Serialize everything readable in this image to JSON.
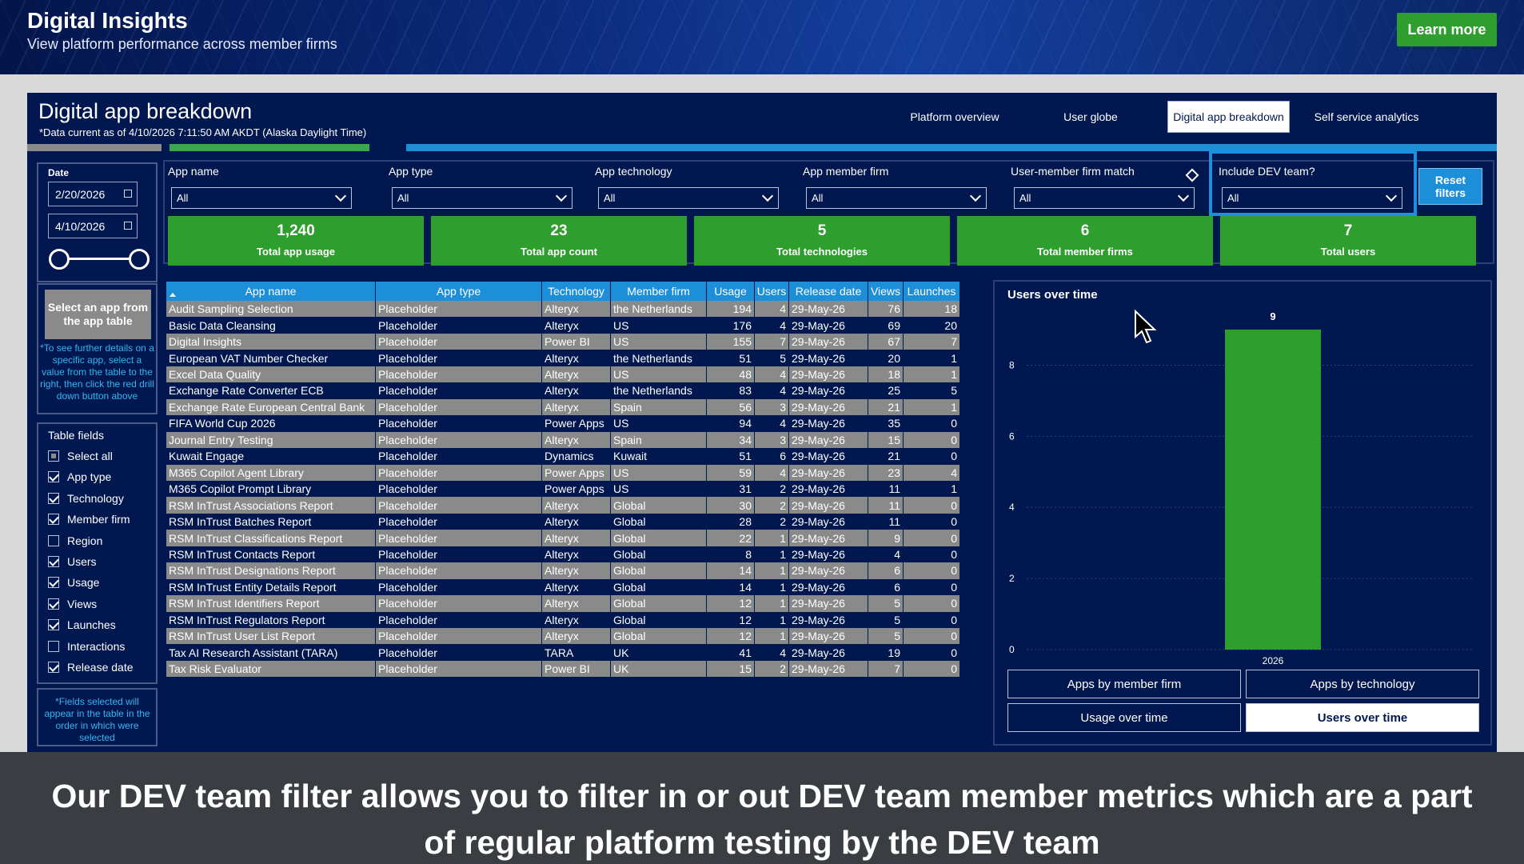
{
  "banner": {
    "title": "Digital Insights",
    "subtitle": "View platform performance across member firms",
    "learn_more": "Learn more"
  },
  "report": {
    "title": "Digital app breakdown",
    "data_note": "*Data current as of 4/10/2026 7:11:50 AM AKDT (Alaska Daylight Time)",
    "tabs": [
      {
        "label": "Platform overview",
        "active": false
      },
      {
        "label": "User globe",
        "active": false
      },
      {
        "label": "Digital app breakdown",
        "active": true
      },
      {
        "label": "Self service analytics",
        "active": false
      }
    ]
  },
  "date_filter": {
    "label": "Date",
    "start": "2/20/2026",
    "end": "4/10/2026"
  },
  "select_app": {
    "button": "Select an app from the app table",
    "note": "*To see further details on a specific app, select a value from the table to the right, then click the red drill down button above"
  },
  "table_fields": {
    "title": "Table fields",
    "items": [
      {
        "label": "Select all",
        "state": "partial"
      },
      {
        "label": "App type",
        "state": "checked"
      },
      {
        "label": "Technology",
        "state": "checked"
      },
      {
        "label": "Member firm",
        "state": "checked"
      },
      {
        "label": "Region",
        "state": "unchecked"
      },
      {
        "label": "Users",
        "state": "checked"
      },
      {
        "label": "Usage",
        "state": "checked"
      },
      {
        "label": "Views",
        "state": "checked"
      },
      {
        "label": "Launches",
        "state": "checked"
      },
      {
        "label": "Interactions",
        "state": "unchecked"
      },
      {
        "label": "Release date",
        "state": "checked"
      }
    ],
    "note": "*Fields selected will appear in the table in the order in which were selected"
  },
  "filters": [
    {
      "label": "App name",
      "value": "All"
    },
    {
      "label": "App type",
      "value": "All"
    },
    {
      "label": "App technology",
      "value": "All"
    },
    {
      "label": "App member firm",
      "value": "All"
    },
    {
      "label": "User-member firm match",
      "value": "All"
    },
    {
      "label": "Include DEV team?",
      "value": "All"
    }
  ],
  "reset_filters": "Reset filters",
  "kpis": [
    {
      "value": "1,240",
      "label": "Total app usage"
    },
    {
      "value": "23",
      "label": "Total app count"
    },
    {
      "value": "5",
      "label": "Total technologies"
    },
    {
      "value": "6",
      "label": "Total member firms"
    },
    {
      "value": "7",
      "label": "Total users"
    }
  ],
  "table": {
    "columns": [
      "App name",
      "App type",
      "Technology",
      "Member firm",
      "Usage",
      "Users",
      "Release date",
      "Views",
      "Launches"
    ],
    "rows": [
      [
        "Audit Sampling Selection",
        "Placeholder",
        "Alteryx",
        "the Netherlands",
        "194",
        "4",
        "29-May-26",
        "76",
        "18"
      ],
      [
        "Basic Data Cleansing",
        "Placeholder",
        "Alteryx",
        "US",
        "176",
        "4",
        "29-May-26",
        "69",
        "20"
      ],
      [
        "Digital Insights",
        "Placeholder",
        "Power BI",
        "US",
        "155",
        "7",
        "29-May-26",
        "67",
        "7"
      ],
      [
        "European VAT Number Checker",
        "Placeholder",
        "Alteryx",
        "the Netherlands",
        "51",
        "5",
        "29-May-26",
        "20",
        "1"
      ],
      [
        "Excel Data Quality",
        "Placeholder",
        "Alteryx",
        "US",
        "48",
        "4",
        "29-May-26",
        "18",
        "1"
      ],
      [
        "Exchange Rate Converter ECB",
        "Placeholder",
        "Alteryx",
        "the Netherlands",
        "83",
        "4",
        "29-May-26",
        "25",
        "5"
      ],
      [
        "Exchange Rate European Central Bank",
        "Placeholder",
        "Alteryx",
        "Spain",
        "56",
        "3",
        "29-May-26",
        "21",
        "1"
      ],
      [
        "FIFA World Cup 2026",
        "Placeholder",
        "Power Apps",
        "US",
        "94",
        "4",
        "29-May-26",
        "35",
        "0"
      ],
      [
        "Journal Entry Testing",
        "Placeholder",
        "Alteryx",
        "Spain",
        "34",
        "3",
        "29-May-26",
        "15",
        "0"
      ],
      [
        "Kuwait Engage",
        "Placeholder",
        "Dynamics",
        "Kuwait",
        "51",
        "6",
        "29-May-26",
        "21",
        "0"
      ],
      [
        "M365 Copilot Agent Library",
        "Placeholder",
        "Power Apps",
        "US",
        "59",
        "4",
        "29-May-26",
        "23",
        "4"
      ],
      [
        "M365 Copilot Prompt Library",
        "Placeholder",
        "Power Apps",
        "US",
        "31",
        "2",
        "29-May-26",
        "11",
        "1"
      ],
      [
        "RSM InTrust Associations Report",
        "Placeholder",
        "Alteryx",
        "Global",
        "30",
        "2",
        "29-May-26",
        "11",
        "0"
      ],
      [
        "RSM InTrust Batches Report",
        "Placeholder",
        "Alteryx",
        "Global",
        "28",
        "2",
        "29-May-26",
        "11",
        "0"
      ],
      [
        "RSM InTrust Classifications Report",
        "Placeholder",
        "Alteryx",
        "Global",
        "22",
        "1",
        "29-May-26",
        "9",
        "0"
      ],
      [
        "RSM InTrust Contacts Report",
        "Placeholder",
        "Alteryx",
        "Global",
        "8",
        "1",
        "29-May-26",
        "4",
        "0"
      ],
      [
        "RSM InTrust Designations Report",
        "Placeholder",
        "Alteryx",
        "Global",
        "14",
        "1",
        "29-May-26",
        "6",
        "0"
      ],
      [
        "RSM InTrust Entity Details Report",
        "Placeholder",
        "Alteryx",
        "Global",
        "14",
        "1",
        "29-May-26",
        "6",
        "0"
      ],
      [
        "RSM InTrust Identifiers Report",
        "Placeholder",
        "Alteryx",
        "Global",
        "12",
        "1",
        "29-May-26",
        "5",
        "0"
      ],
      [
        "RSM InTrust Regulators Report",
        "Placeholder",
        "Alteryx",
        "Global",
        "12",
        "1",
        "29-May-26",
        "5",
        "0"
      ],
      [
        "RSM InTrust User List Report",
        "Placeholder",
        "Alteryx",
        "Global",
        "12",
        "1",
        "29-May-26",
        "5",
        "0"
      ],
      [
        "Tax AI Research Assistant (TARA)",
        "Placeholder",
        "TARA",
        "UK",
        "41",
        "4",
        "29-May-26",
        "19",
        "0"
      ],
      [
        "Tax Risk Evaluator",
        "Placeholder",
        "Power BI",
        "UK",
        "15",
        "2",
        "29-May-26",
        "7",
        "0"
      ]
    ]
  },
  "chart_data": {
    "type": "bar",
    "title": "Users over time",
    "categories": [
      "2026"
    ],
    "values": [
      9
    ],
    "data_labels": [
      "9"
    ],
    "ylim": [
      0,
      9
    ],
    "yticks": [
      "0",
      "2",
      "4",
      "6",
      "8"
    ],
    "grid": true,
    "bar_color": "#2e9e2e"
  },
  "chart_buttons": [
    {
      "label": "Apps by member firm",
      "active": false
    },
    {
      "label": "Apps by technology",
      "active": false
    },
    {
      "label": "Usage over time",
      "active": false
    },
    {
      "label": "Users over time",
      "active": true
    }
  ],
  "caption": "Our DEV team filter allows you to filter in or out DEV team member metrics which are a part of regular platform testing by the DEV team",
  "colors": {
    "navy": "#01174f",
    "green": "#2e9e2e",
    "blue": "#1d8ed8",
    "grey_row": "#8a8a8a"
  }
}
